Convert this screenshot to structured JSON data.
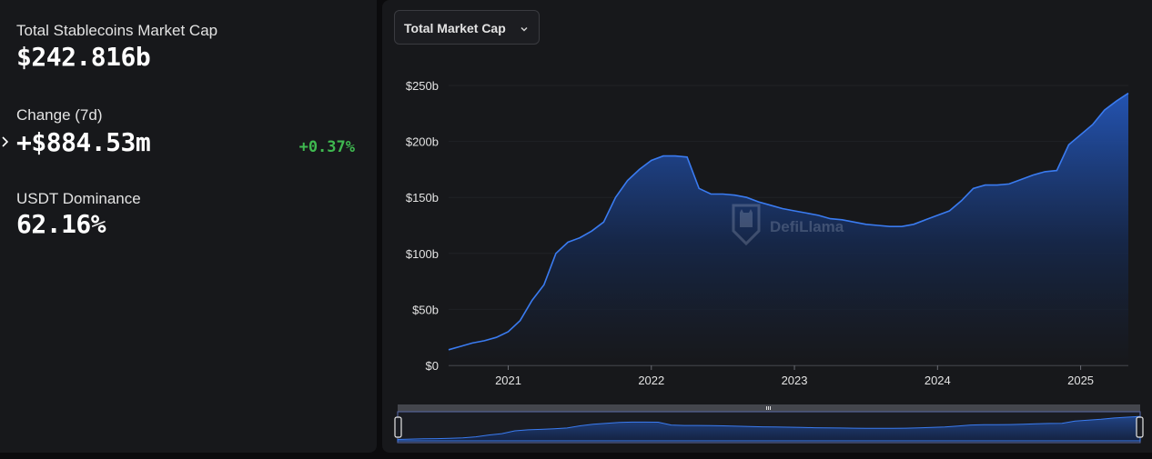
{
  "stats": {
    "market_cap_label": "Total Stablecoins Market Cap",
    "market_cap_value": "$242.816b",
    "change_label": "Change (7d)",
    "change_value": "+$884.53m",
    "change_percent": "+0.37%",
    "dominance_label": "USDT Dominance",
    "dominance_value": "62.16%"
  },
  "dropdown": {
    "selected": "Total Market Cap",
    "icon": "chevron-down-icon"
  },
  "watermark": {
    "text": "DefiLlama"
  },
  "colors": {
    "accent": "#2f6fe0",
    "positive": "#3fb950",
    "panel": "#17181b",
    "background": "#0b0b0d"
  },
  "chart_data": {
    "type": "area",
    "title": "",
    "xlabel": "",
    "ylabel": "",
    "x_ticks": [
      "2021",
      "2022",
      "2023",
      "2024",
      "2025"
    ],
    "y_ticks": [
      "$0",
      "$50b",
      "$100b",
      "$150b",
      "$200b",
      "$250b"
    ],
    "ylim": [
      0,
      250
    ],
    "xlim": [
      "2020-08",
      "2025-05"
    ],
    "grid": "horizontal",
    "series": [
      {
        "values_unit": "billion USD",
        "x": [
          "2020-08",
          "2020-09",
          "2020-10",
          "2020-11",
          "2020-12",
          "2021-01",
          "2021-02",
          "2021-03",
          "2021-04",
          "2021-05",
          "2021-06",
          "2021-07",
          "2021-08",
          "2021-09",
          "2021-10",
          "2021-11",
          "2021-12",
          "2022-01",
          "2022-02",
          "2022-03",
          "2022-04",
          "2022-05",
          "2022-06",
          "2022-07",
          "2022-08",
          "2022-09",
          "2022-10",
          "2022-11",
          "2022-12",
          "2023-01",
          "2023-02",
          "2023-03",
          "2023-04",
          "2023-05",
          "2023-06",
          "2023-07",
          "2023-08",
          "2023-09",
          "2023-10",
          "2023-11",
          "2023-12",
          "2024-01",
          "2024-02",
          "2024-03",
          "2024-04",
          "2024-05",
          "2024-06",
          "2024-07",
          "2024-08",
          "2024-09",
          "2024-10",
          "2024-11",
          "2024-12",
          "2025-01",
          "2025-02",
          "2025-03",
          "2025-04",
          "2025-05"
        ],
        "y": [
          14,
          17,
          20,
          22,
          25,
          30,
          40,
          58,
          72,
          100,
          110,
          114,
          120,
          128,
          150,
          165,
          175,
          183,
          187,
          187,
          186,
          158,
          153,
          153,
          152,
          150,
          146,
          143,
          140,
          138,
          136,
          134,
          131,
          130,
          128,
          126,
          125,
          124,
          124,
          126,
          130,
          134,
          138,
          147,
          158,
          161,
          161,
          162,
          166,
          170,
          173,
          174,
          197,
          206,
          215,
          228,
          236,
          243
        ]
      }
    ]
  }
}
